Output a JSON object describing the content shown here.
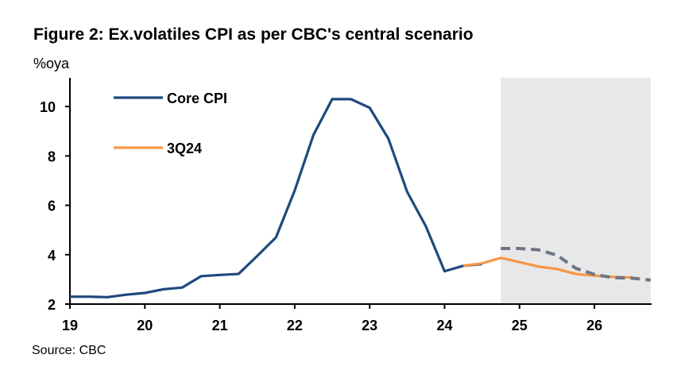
{
  "chart_data": {
    "type": "line",
    "title": "Figure 2: Ex.volatiles CPI as per CBC's central scenario",
    "ylabel": "%oya",
    "source": "Source: CBC",
    "ylim": [
      2,
      10.8
    ],
    "xlim": [
      19,
      26.75
    ],
    "yticks": [
      2,
      4,
      6,
      8,
      10
    ],
    "xticks": [
      19,
      20,
      21,
      22,
      23,
      24,
      25,
      26
    ],
    "forecast_shade": [
      24.75,
      26.75
    ],
    "colors": {
      "core": "#1f497d",
      "q3": "#f79646",
      "dashed": "#6d7686",
      "shade": "#e8e8e8"
    },
    "series": [
      {
        "name": "Core CPI",
        "legend": true,
        "x": [
          19,
          19.25,
          19.5,
          19.75,
          20,
          20.25,
          20.5,
          20.75,
          21,
          21.25,
          21.5,
          21.75,
          22,
          22.25,
          22.5,
          22.75,
          23,
          23.25,
          23.5,
          23.75,
          24,
          24.25,
          24.5
        ],
        "values": [
          2.3,
          2.3,
          2.28,
          2.38,
          2.45,
          2.6,
          2.67,
          3.13,
          3.18,
          3.22,
          3.95,
          4.7,
          6.6,
          8.85,
          10.3,
          10.3,
          9.95,
          8.7,
          6.55,
          5.15,
          3.33,
          3.55,
          3.62
        ]
      },
      {
        "name": "3Q24",
        "legend": true,
        "x": [
          24.25,
          24.5,
          24.75,
          25,
          25.25,
          25.5,
          25.75,
          26,
          26.25,
          26.5
        ],
        "values": [
          3.55,
          3.65,
          3.87,
          3.7,
          3.52,
          3.42,
          3.22,
          3.15,
          3.1,
          3.08
        ]
      },
      {
        "name": "Central scenario",
        "legend": false,
        "x": [
          24.75,
          25,
          25.25,
          25.5,
          25.75,
          26,
          26.25,
          26.5,
          26.75
        ],
        "values": [
          4.25,
          4.25,
          4.2,
          3.98,
          3.45,
          3.2,
          3.07,
          3.05,
          2.97
        ]
      }
    ]
  }
}
